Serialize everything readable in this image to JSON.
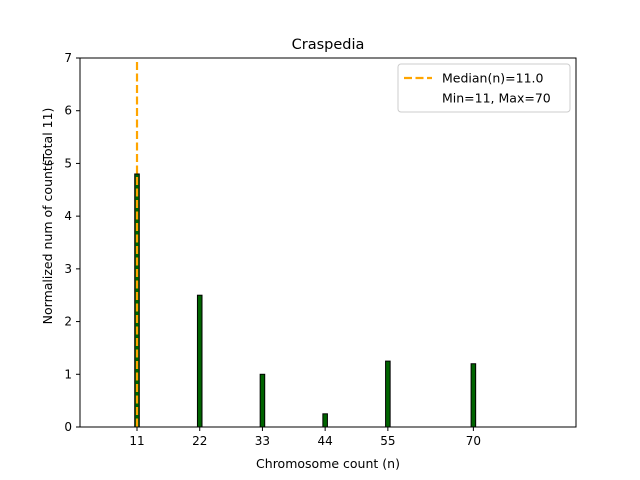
{
  "chart_data": {
    "type": "bar",
    "title": "Craspedia",
    "xlabel": "Chromosome count (n)",
    "ylabel": "Normalized num of counts",
    "ylabel_note": "(Total 11)",
    "xlim": [
      1,
      88
    ],
    "ylim": [
      0,
      7
    ],
    "xticks": [
      11,
      22,
      33,
      44,
      55,
      70
    ],
    "yticks": [
      0,
      1,
      2,
      3,
      4,
      5,
      6,
      7
    ],
    "bar_width": 0.8,
    "bar_color": "#006400",
    "bar_edge_color": "#000000",
    "grid": false,
    "legend_position": "top-right",
    "series": [
      {
        "name": "counts",
        "x": [
          11,
          22,
          33,
          44,
          55,
          70
        ],
        "values": [
          4.8,
          2.5,
          1.0,
          0.25,
          1.25,
          1.2
        ]
      }
    ],
    "median_line": {
      "x": 11.0,
      "color": "#FFA500",
      "style": "dashed",
      "label": "Median(n)=11.0"
    },
    "legend": {
      "entries": [
        {
          "label": "Median(n)=11.0",
          "kind": "dashed-line",
          "color": "#FFA500"
        },
        {
          "label": "Min=11, Max=70",
          "kind": "none"
        }
      ]
    }
  }
}
